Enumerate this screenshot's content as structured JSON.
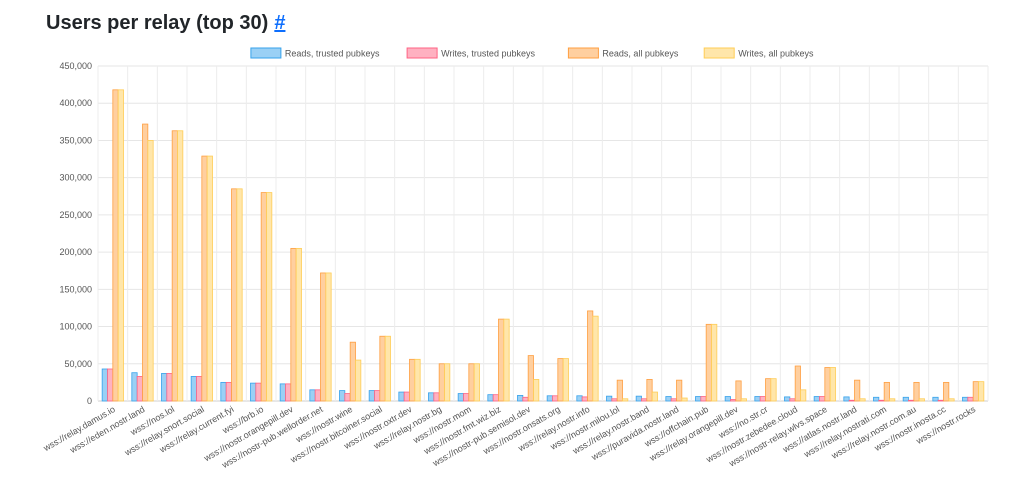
{
  "page": {
    "title": "Users per relay (top 30)",
    "anchor": "#"
  },
  "chart_data": {
    "type": "bar",
    "title": "",
    "xlabel": "",
    "ylabel": "",
    "ylim": [
      0,
      450000
    ],
    "yticks": [
      0,
      50000,
      100000,
      150000,
      200000,
      250000,
      300000,
      350000,
      400000,
      450000
    ],
    "ytick_labels": [
      "0",
      "50,000",
      "100,000",
      "150,000",
      "200,000",
      "250,000",
      "300,000",
      "350,000",
      "400,000",
      "450,000"
    ],
    "grid": true,
    "legend_position": "top",
    "categories": [
      "wss://relay.damus.io",
      "wss://eden.nostr.land",
      "wss://nos.lol",
      "wss://relay.snort.social",
      "wss://relay.current.fyi",
      "wss://brb.io",
      "wss://nostr.orangepill.dev",
      "wss://nostr-pub.wellorder.net",
      "wss://nostr.wine",
      "wss://nostr.bitcoiner.social",
      "wss://nostr.oxtr.dev",
      "wss://relay.nostr.bg",
      "wss://nostr.mom",
      "wss://nostr.fmt.wiz.biz",
      "wss://nostr-pub.semisol.dev",
      "wss://nostr.onsats.org",
      "wss://relay.nostr.info",
      "wss://nostr.milou.lol",
      "wss://relay.nostr.band",
      "wss://puravida.nostr.land",
      "wss://offchain.pub",
      "wss://relay.orangepill.dev",
      "wss://no.str.cr",
      "wss://nostr.zebedee.cloud",
      "wss://nostr-relay.wlvs.space",
      "wss://atlas.nostr.land",
      "wss://relay.nostrati.com",
      "wss://relay.nostr.com.au",
      "wss://nostr.inosta.cc",
      "wss://nostr.rocks"
    ],
    "series": [
      {
        "name": "Reads, trusted pubkeys",
        "color": "#9ad0f5",
        "border": "#36a2eb",
        "values": [
          43000,
          38000,
          37000,
          33000,
          25000,
          24000,
          23000,
          15000,
          14000,
          14000,
          12000,
          11000,
          10000,
          8500,
          7500,
          7000,
          7000,
          6500,
          6500,
          6000,
          6000,
          6000,
          6000,
          5500,
          6000,
          5500,
          5000,
          5000,
          5000,
          5000
        ]
      },
      {
        "name": "Writes, trusted pubkeys",
        "color": "#ffb1c1",
        "border": "#ff6384",
        "values": [
          43000,
          33000,
          37000,
          33000,
          25000,
          24000,
          23000,
          15000,
          10000,
          14000,
          12000,
          11000,
          10000,
          8500,
          5000,
          7000,
          5500,
          3000,
          3000,
          3000,
          6000,
          2000,
          6000,
          3000,
          6000,
          1000,
          1000,
          1000,
          1000,
          5000
        ]
      },
      {
        "name": "Reads, all pubkeys",
        "color": "#ffcf9f",
        "border": "#ff9f40",
        "values": [
          418000,
          372000,
          363000,
          329000,
          285000,
          280000,
          205000,
          172000,
          79000,
          87000,
          56000,
          50000,
          50000,
          110000,
          61000,
          57000,
          121000,
          28000,
          29000,
          28000,
          103000,
          27000,
          30000,
          47000,
          45000,
          28000,
          25000,
          25000,
          25000,
          26000
        ]
      },
      {
        "name": "Writes, all pubkeys",
        "color": "#ffe6aa",
        "border": "#ffcd56",
        "values": [
          418000,
          350000,
          363000,
          329000,
          285000,
          280000,
          205000,
          172000,
          55000,
          87000,
          56000,
          50000,
          50000,
          110000,
          29000,
          57000,
          114000,
          3000,
          12000,
          4000,
          103000,
          3000,
          30000,
          15000,
          45000,
          3000,
          3000,
          3000,
          3000,
          26000
        ]
      }
    ]
  }
}
